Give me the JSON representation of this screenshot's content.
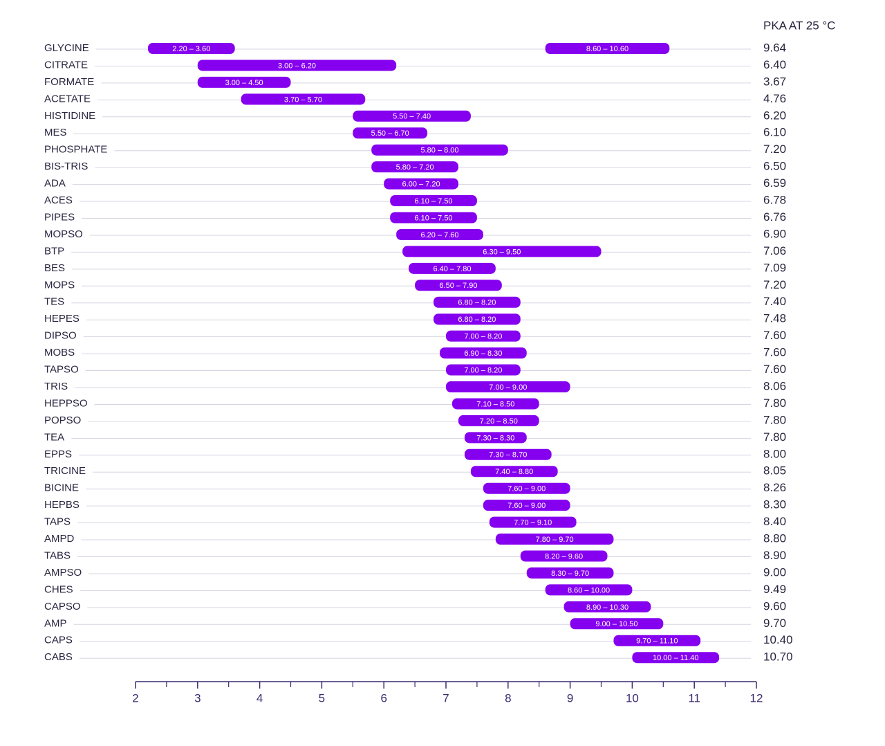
{
  "chart_data": {
    "type": "range-bar",
    "pka_title": "PKA AT 25 °C",
    "color": "#8600f0",
    "xlim": [
      2,
      12
    ],
    "xticks": [
      2,
      3,
      4,
      5,
      6,
      7,
      8,
      9,
      10,
      11,
      12
    ],
    "categories": [
      "GLYCINE",
      "CITRATE",
      "FORMATE",
      "ACETATE",
      "HISTIDINE",
      "MES",
      "PHOSPHATE",
      "BIS-TRIS",
      "ADA",
      "ACES",
      "PIPES",
      "MOPSO",
      "BTP",
      "BES",
      "MOPS",
      "TES",
      "HEPES",
      "DIPSO",
      "MOBS",
      "TAPSO",
      "TRIS",
      "HEPPSO",
      "POPSO",
      "TEA",
      "EPPS",
      "TRICINE",
      "BICINE",
      "HEPBS",
      "TAPS",
      "AMPD",
      "TABS",
      "AMPSO",
      "CHES",
      "CAPSO",
      "AMP",
      "CAPS",
      "CABS"
    ],
    "ranges": [
      [
        {
          "low": 2.2,
          "high": 3.6,
          "label": "2.20 – 3.60"
        },
        {
          "low": 8.6,
          "high": 10.6,
          "label": "8.60 – 10.60"
        }
      ],
      [
        {
          "low": 3,
          "high": 6.2,
          "label": "3.00 – 6.20"
        }
      ],
      [
        {
          "low": 3,
          "high": 4.5,
          "label": "3.00 – 4.50"
        }
      ],
      [
        {
          "low": 3.7,
          "high": 5.7,
          "label": "3.70 – 5.70"
        }
      ],
      [
        {
          "low": 5.5,
          "high": 7.4,
          "label": "5.50 – 7.40"
        }
      ],
      [
        {
          "low": 5.5,
          "high": 6.7,
          "label": "5.50 – 6.70"
        }
      ],
      [
        {
          "low": 5.8,
          "high": 8,
          "label": "5.80 – 8.00"
        }
      ],
      [
        {
          "low": 5.8,
          "high": 7.2,
          "label": "5.80 – 7.20"
        }
      ],
      [
        {
          "low": 6,
          "high": 7.2,
          "label": "6.00 – 7.20"
        }
      ],
      [
        {
          "low": 6.1,
          "high": 7.5,
          "label": "6.10 – 7.50"
        }
      ],
      [
        {
          "low": 6.1,
          "high": 7.5,
          "label": "6.10 – 7.50"
        }
      ],
      [
        {
          "low": 6.2,
          "high": 7.6,
          "label": "6.20 – 7.60"
        }
      ],
      [
        {
          "low": 6.3,
          "high": 9.5,
          "label": "6.30 – 9.50"
        }
      ],
      [
        {
          "low": 6.4,
          "high": 7.8,
          "label": "6.40 – 7.80"
        }
      ],
      [
        {
          "low": 6.5,
          "high": 7.9,
          "label": "6.50 – 7.90"
        }
      ],
      [
        {
          "low": 6.8,
          "high": 8.2,
          "label": "6.80 – 8.20"
        }
      ],
      [
        {
          "low": 6.8,
          "high": 8.2,
          "label": "6.80 – 8.20"
        }
      ],
      [
        {
          "low": 7,
          "high": 8.2,
          "label": "7.00 – 8.20"
        }
      ],
      [
        {
          "low": 6.9,
          "high": 8.3,
          "label": "6.90 – 8.30"
        }
      ],
      [
        {
          "low": 7,
          "high": 8.2,
          "label": "7.00 – 8.20"
        }
      ],
      [
        {
          "low": 7,
          "high": 9,
          "label": "7.00 – 9.00"
        }
      ],
      [
        {
          "low": 7.1,
          "high": 8.5,
          "label": "7.10 – 8.50"
        }
      ],
      [
        {
          "low": 7.2,
          "high": 8.5,
          "label": "7.20 – 8.50"
        }
      ],
      [
        {
          "low": 7.3,
          "high": 8.3,
          "label": "7.30 – 8.30"
        }
      ],
      [
        {
          "low": 7.3,
          "high": 8.7,
          "label": "7.30 – 8.70"
        }
      ],
      [
        {
          "low": 7.4,
          "high": 8.8,
          "label": "7.40 – 8.80"
        }
      ],
      [
        {
          "low": 7.6,
          "high": 9,
          "label": "7.60 – 9.00"
        }
      ],
      [
        {
          "low": 7.6,
          "high": 9,
          "label": "7.60 – 9.00"
        }
      ],
      [
        {
          "low": 7.7,
          "high": 9.1,
          "label": "7.70 – 9.10"
        }
      ],
      [
        {
          "low": 7.8,
          "high": 9.7,
          "label": "7.80 – 9.70"
        }
      ],
      [
        {
          "low": 8.2,
          "high": 9.6,
          "label": "8.20 – 9.60"
        }
      ],
      [
        {
          "low": 8.3,
          "high": 9.7,
          "label": "8.30 – 9.70"
        }
      ],
      [
        {
          "low": 8.6,
          "high": 10,
          "label": "8.60 – 10.00"
        }
      ],
      [
        {
          "low": 8.9,
          "high": 10.3,
          "label": "8.90 – 10.30"
        }
      ],
      [
        {
          "low": 9,
          "high": 10.5,
          "label": "9.00 – 10.50"
        }
      ],
      [
        {
          "low": 9.7,
          "high": 11.1,
          "label": "9.70 – 11.10"
        }
      ],
      [
        {
          "low": 10,
          "high": 11.4,
          "label": "10.00 – 11.40"
        }
      ]
    ],
    "pka": [
      9.64,
      6.4,
      3.67,
      4.76,
      6.2,
      6.1,
      7.2,
      6.5,
      6.59,
      6.78,
      6.76,
      6.9,
      7.06,
      7.09,
      7.2,
      7.4,
      7.48,
      7.6,
      7.6,
      7.6,
      8.06,
      7.8,
      7.8,
      7.8,
      8,
      8.05,
      8.26,
      8.3,
      8.4,
      8.8,
      8.9,
      9,
      9.49,
      9.6,
      9.7,
      10.4,
      10.7
    ],
    "pka_labels": [
      "9.64",
      "6.40",
      "3.67",
      "4.76",
      "6.20",
      "6.10",
      "7.20",
      "6.50",
      "6.59",
      "6.78",
      "6.76",
      "6.90",
      "7.06",
      "7.09",
      "7.20",
      "7.40",
      "7.48",
      "7.60",
      "7.60",
      "7.60",
      "8.06",
      "7.80",
      "7.80",
      "7.80",
      "8.00",
      "8.05",
      "8.26",
      "8.30",
      "8.40",
      "8.80",
      "8.90",
      "9.00",
      "9.49",
      "9.60",
      "9.70",
      "10.40",
      "10.70"
    ]
  }
}
